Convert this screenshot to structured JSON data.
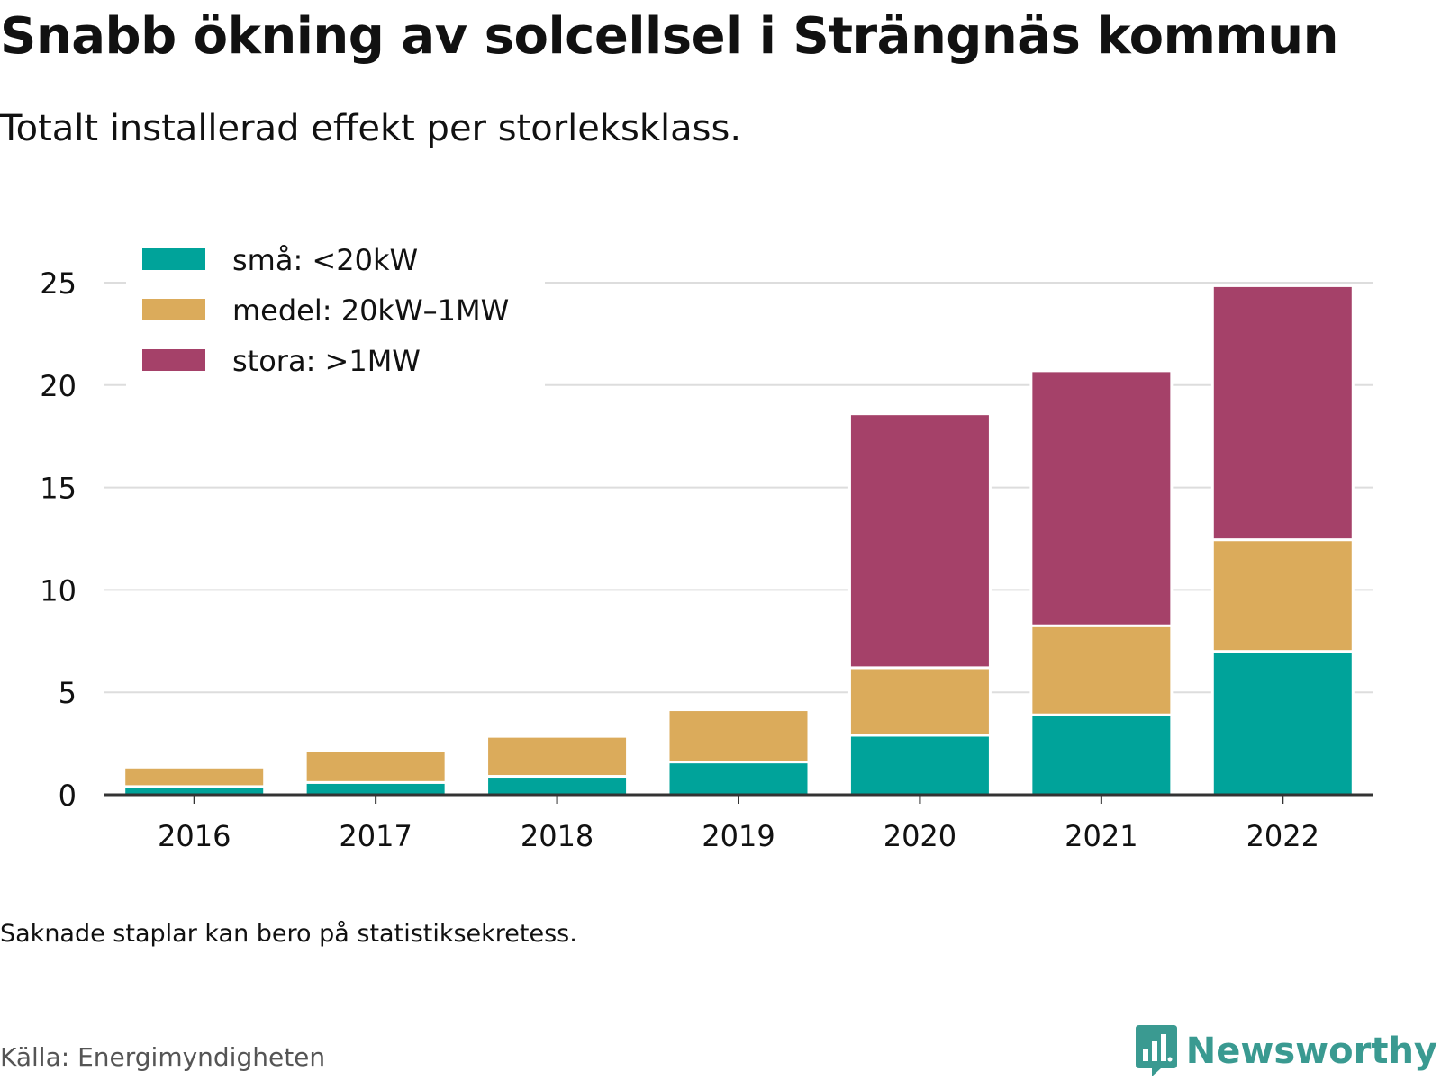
{
  "header": {
    "title": "Snabb ökning av solcellsel i Strängnäs kommun",
    "subtitle": "Totalt installerad effekt per storleksklass."
  },
  "footer": {
    "note": "Saknade staplar kan bero på statistiksekretess.",
    "source": "Källa: Energimyndigheten",
    "brand": "Newsworthy"
  },
  "colors": {
    "text": "#111111",
    "grid": "#dddddd",
    "axis": "#333333",
    "brand": "#3a9a91"
  },
  "chart_data": {
    "type": "bar",
    "stacked": true,
    "categories": [
      "2016",
      "2017",
      "2018",
      "2019",
      "2020",
      "2021",
      "2022"
    ],
    "series": [
      {
        "name": "små: <20kW",
        "color": "#00a39a",
        "values": [
          0.4,
          0.6,
          0.9,
          1.6,
          2.9,
          3.9,
          7.0
        ]
      },
      {
        "name": "medel: 20kW–1MW",
        "color": "#dbab5b",
        "values": [
          0.95,
          1.55,
          1.95,
          2.55,
          3.3,
          4.35,
          5.45
        ]
      },
      {
        "name": "stora: >1MW",
        "color": "#a54169",
        "values": [
          0,
          0,
          0,
          0,
          12.4,
          12.45,
          12.4
        ]
      }
    ],
    "ylim": [
      0,
      25
    ],
    "yticks": [
      0,
      5,
      10,
      15,
      20,
      25
    ],
    "xlabel": "",
    "ylabel": "",
    "grid": true,
    "legend_position": "top-left"
  }
}
